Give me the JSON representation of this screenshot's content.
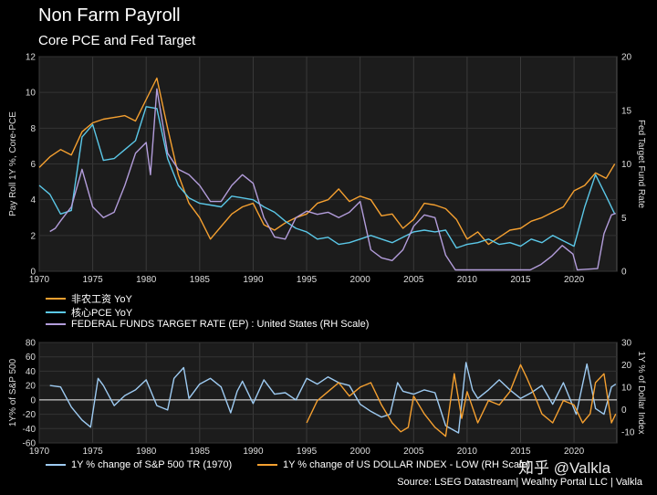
{
  "header": {
    "title": "Non Farm Payroll",
    "subtitle": "Core PCE and Fed Target"
  },
  "legend_top": [
    {
      "label": "非农工资 YoY",
      "color": "#f5a030"
    },
    {
      "label": "核心PCE YoY",
      "color": "#5bc8e8"
    },
    {
      "label": "FEDERAL FUNDS TARGET RATE (EP) : United States (RH Scale)",
      "color": "#b39ddb"
    }
  ],
  "legend_bottom": [
    {
      "label": "1Y % change of S&P 500 TR (1970)",
      "color": "#9ecbf2"
    },
    {
      "label": "1Y % change of US DOLLAR INDEX - LOW (RH Scale)",
      "color": "#f5a030"
    }
  ],
  "footer": {
    "source": "Source: LSEG Datastream| Wealhty Portal LLC | Valkla",
    "watermark": "知乎 @Valkla"
  },
  "chart_data": [
    {
      "type": "line",
      "title": "Non Farm Payroll",
      "subtitle": "Core PCE and Fed Target",
      "ylabel": "Pay Roll 1Y %, Core-PCE",
      "ylabel_right": "Fed Target Fund Rate",
      "xlim": [
        1970,
        2024
      ],
      "ylim": [
        0,
        12
      ],
      "ylim_right": [
        0,
        20
      ],
      "x_ticks": [
        1970,
        1975,
        1980,
        1985,
        1990,
        1995,
        2000,
        2005,
        2010,
        2015,
        2020
      ],
      "y_ticks": [
        0,
        2,
        4,
        6,
        8,
        10,
        12
      ],
      "y_ticks_right": [
        0,
        5,
        10,
        15,
        20
      ],
      "grid": true,
      "series": [
        {
          "name": "非农工资 YoY",
          "axis": "left",
          "color": "#f5a030",
          "x": [
            1970,
            1971,
            1972,
            1973,
            1974,
            1975,
            1976,
            1977,
            1978,
            1979,
            1980,
            1981,
            1982,
            1983,
            1984,
            1985,
            1986,
            1987,
            1988,
            1989,
            1990,
            1991,
            1992,
            1993,
            1994,
            1995,
            1996,
            1997,
            1998,
            1999,
            2000,
            2001,
            2002,
            2003,
            2004,
            2005,
            2006,
            2007,
            2008,
            2009,
            2010,
            2011,
            2012,
            2013,
            2014,
            2015,
            2016,
            2017,
            2018,
            2019,
            2020,
            2021,
            2022,
            2023,
            2023.8
          ],
          "y": [
            5.8,
            6.4,
            6.8,
            6.5,
            7.8,
            8.3,
            8.5,
            8.6,
            8.7,
            8.4,
            9.6,
            10.8,
            8.0,
            5.4,
            3.8,
            3.0,
            1.8,
            2.5,
            3.2,
            3.6,
            3.8,
            2.6,
            2.3,
            2.7,
            3.0,
            3.2,
            3.8,
            4.0,
            4.6,
            3.9,
            4.2,
            4.0,
            3.1,
            3.2,
            2.4,
            2.9,
            3.8,
            3.7,
            3.5,
            2.9,
            1.8,
            2.2,
            1.5,
            1.9,
            2.3,
            2.4,
            2.8,
            3.0,
            3.3,
            3.6,
            4.5,
            4.8,
            5.5,
            5.2,
            6.0
          ]
        },
        {
          "name": "核心PCE YoY",
          "axis": "left",
          "color": "#5bc8e8",
          "x": [
            1970,
            1971,
            1972,
            1973,
            1974,
            1975,
            1976,
            1977,
            1978,
            1979,
            1980,
            1981,
            1982,
            1983,
            1984,
            1985,
            1986,
            1987,
            1988,
            1989,
            1990,
            1991,
            1992,
            1993,
            1994,
            1995,
            1996,
            1997,
            1998,
            1999,
            2000,
            2001,
            2002,
            2003,
            2004,
            2005,
            2006,
            2007,
            2008,
            2009,
            2010,
            2011,
            2012,
            2013,
            2014,
            2015,
            2016,
            2017,
            2018,
            2019,
            2020,
            2021,
            2022,
            2023,
            2023.8
          ],
          "y": [
            4.8,
            4.3,
            3.2,
            3.4,
            7.5,
            8.2,
            6.2,
            6.3,
            6.8,
            7.3,
            9.2,
            9.1,
            6.3,
            4.8,
            4.1,
            3.8,
            3.7,
            3.6,
            4.2,
            4.1,
            4.0,
            3.6,
            3.3,
            2.8,
            2.4,
            2.2,
            1.8,
            1.9,
            1.5,
            1.6,
            1.8,
            2.0,
            1.8,
            1.6,
            1.9,
            2.2,
            2.3,
            2.2,
            2.3,
            1.3,
            1.5,
            1.6,
            1.8,
            1.5,
            1.6,
            1.4,
            1.8,
            1.6,
            2.0,
            1.7,
            1.4,
            3.6,
            5.4,
            4.2,
            3.2
          ]
        },
        {
          "name": "FEDERAL FUNDS TARGET RATE (EP) : United States (RH Scale)",
          "axis": "right",
          "color": "#b39ddb",
          "x": [
            1971,
            1971.5,
            1972,
            1973,
            1974,
            1975,
            1976,
            1977,
            1978,
            1979,
            1980,
            1980.4,
            1981,
            1982,
            1983,
            1984,
            1985,
            1986,
            1987,
            1988,
            1989,
            1990,
            1991,
            1992,
            1993,
            1994,
            1995,
            1996,
            1997,
            1998,
            1999,
            2000,
            2001,
            2002,
            2003,
            2004,
            2005,
            2006,
            2007,
            2008,
            2008.9,
            2015.9,
            2016.9,
            2017.9,
            2018.9,
            2019.9,
            2020.3,
            2022.2,
            2022.8,
            2023.5,
            2023.9
          ],
          "y": [
            3.7,
            4.0,
            4.7,
            6.0,
            9.5,
            6.0,
            5.0,
            5.5,
            8.0,
            11.0,
            12.0,
            9.0,
            17.0,
            11.0,
            9.5,
            9.0,
            8.0,
            6.5,
            6.5,
            8.0,
            9.0,
            8.2,
            5.0,
            3.2,
            3.0,
            5.0,
            5.6,
            5.3,
            5.5,
            5.0,
            5.5,
            6.5,
            2.0,
            1.25,
            1.0,
            2.0,
            4.2,
            5.25,
            5.0,
            1.5,
            0.13,
            0.13,
            0.63,
            1.4,
            2.4,
            1.6,
            0.13,
            0.25,
            3.5,
            5.25,
            5.4
          ]
        }
      ]
    },
    {
      "type": "line",
      "ylabel": "1Y% of S&P 500",
      "ylabel_right": "1Y % of Dollar Index",
      "xlim": [
        1970,
        2024
      ],
      "ylim": [
        -60,
        80
      ],
      "ylim_right": [
        -15,
        30
      ],
      "x_ticks": [
        1970,
        1975,
        1980,
        1985,
        1990,
        1995,
        2000,
        2005,
        2010,
        2015,
        2020
      ],
      "y_ticks": [
        -60,
        -40,
        -20,
        0,
        20,
        40,
        60,
        80
      ],
      "y_ticks_right": [
        -10,
        0,
        10,
        20,
        30
      ],
      "grid": true,
      "series": [
        {
          "name": "1Y % change of S&P 500 TR (1970)",
          "axis": "left",
          "color": "#9ecbf2",
          "x": [
            1971,
            1972,
            1973,
            1974,
            1974.8,
            1975.5,
            1976,
            1977,
            1978,
            1979,
            1980,
            1981,
            1982,
            1982.6,
            1983.5,
            1984,
            1985,
            1986,
            1987,
            1987.9,
            1988.5,
            1989,
            1990,
            1991,
            1992,
            1993,
            1994,
            1995,
            1996,
            1997,
            1998,
            1999,
            2000,
            2001,
            2002,
            2002.8,
            2003.5,
            2004,
            2005,
            2006,
            2007,
            2008,
            2009.2,
            2009.9,
            2010.5,
            2011,
            2012,
            2013,
            2014,
            2015,
            2016,
            2017,
            2018,
            2019,
            2020.2,
            2021.2,
            2022,
            2022.8,
            2023.5,
            2023.9
          ],
          "y": [
            20,
            18,
            -10,
            -28,
            -38,
            30,
            20,
            -8,
            6,
            14,
            28,
            -8,
            -14,
            30,
            45,
            2,
            22,
            30,
            18,
            -18,
            12,
            26,
            -5,
            28,
            8,
            10,
            0,
            30,
            22,
            32,
            24,
            20,
            -6,
            -16,
            -24,
            -20,
            24,
            12,
            8,
            14,
            10,
            -36,
            -46,
            52,
            14,
            2,
            14,
            28,
            14,
            2,
            10,
            20,
            -6,
            24,
            -20,
            50,
            -12,
            -20,
            18,
            22
          ]
        },
        {
          "name": "1Y % change of US DOLLAR INDEX - LOW (RH Scale)",
          "axis": "right",
          "color": "#f5a030",
          "x": [
            1995,
            1996,
            1997,
            1998,
            1999,
            2000,
            2001,
            2002,
            2003,
            2003.8,
            2004.5,
            2005,
            2006,
            2007,
            2008,
            2008.8,
            2009.5,
            2010,
            2011,
            2012,
            2013,
            2014,
            2015,
            2015.6,
            2016.5,
            2017,
            2018,
            2019,
            2020,
            2020.8,
            2021.5,
            2022,
            2022.8,
            2023.5,
            2023.9
          ],
          "y": [
            -6,
            4,
            8,
            12,
            6,
            10,
            12,
            2,
            -6,
            -10,
            -8,
            6,
            -2,
            -8,
            -12,
            16,
            -4,
            8,
            -6,
            4,
            2,
            8,
            20,
            14,
            4,
            -2,
            -6,
            4,
            2,
            -6,
            -2,
            12,
            16,
            -6,
            -2
          ]
        }
      ]
    }
  ]
}
